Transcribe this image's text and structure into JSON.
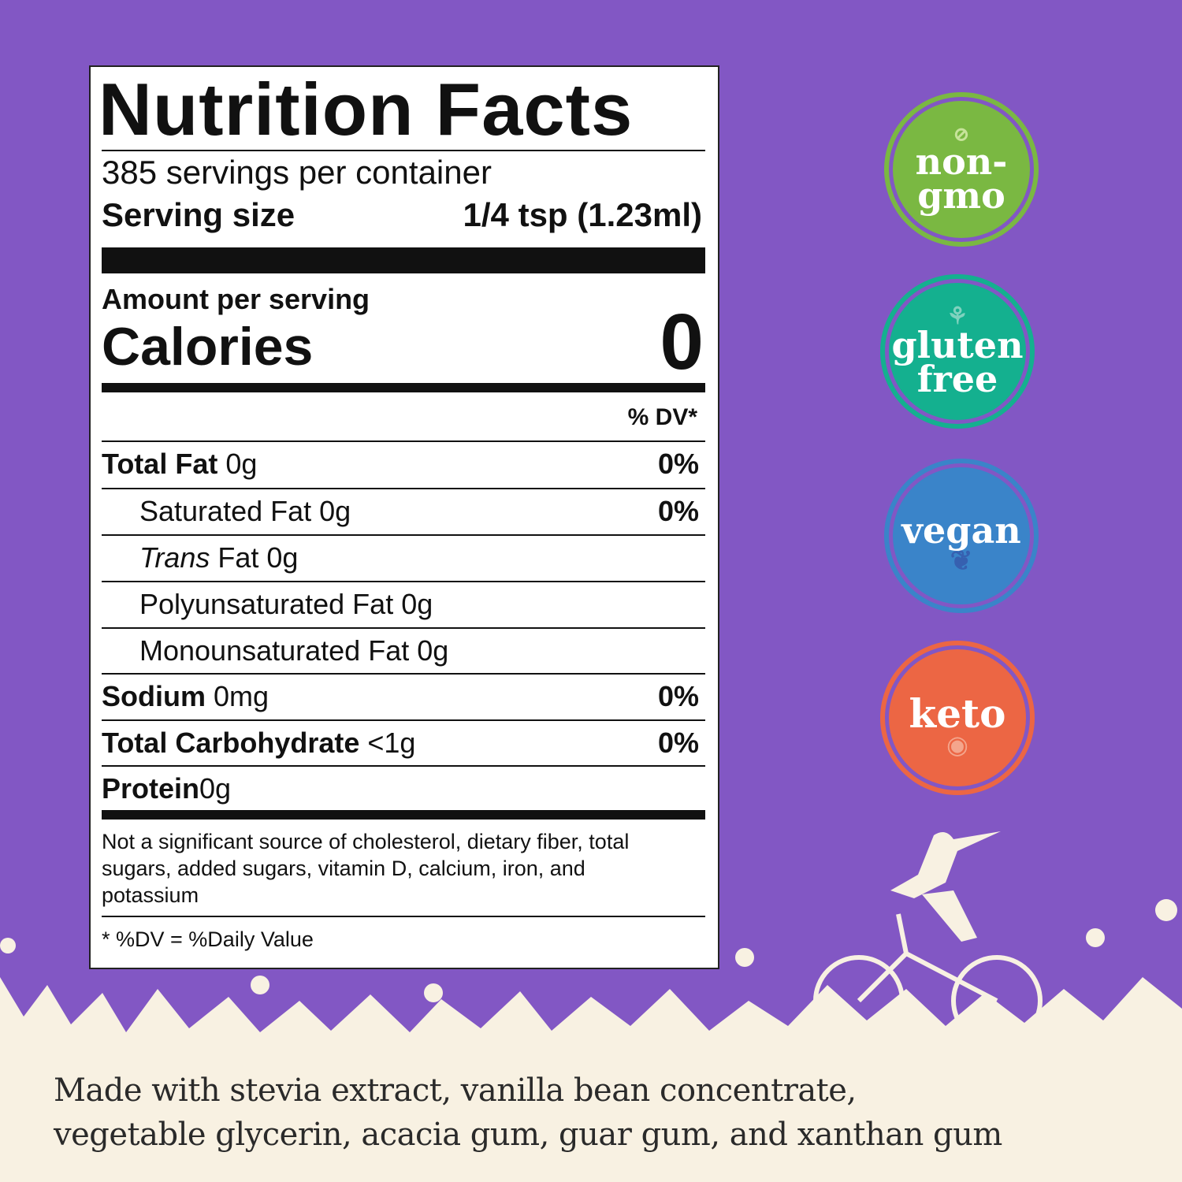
{
  "label": {
    "title": "Nutrition Facts",
    "servings": "385 servings per container",
    "serving_size_label": "Serving size",
    "serving_size_value": "1/4 tsp (1.23ml)",
    "amount_per_serving": "Amount per serving",
    "calories_label": "Calories",
    "calories_value": "0",
    "dv_header": "% DV*",
    "rows": [
      {
        "name": "Total Fat",
        "amount": "0g",
        "dv": "0%"
      },
      {
        "name": "Saturated Fat 0g",
        "dv": "0%"
      },
      {
        "name_italic": "Trans",
        "name": "Fat 0g"
      },
      {
        "name": "Polyunsaturated Fat 0g"
      },
      {
        "name": "Monounsaturated Fat 0g"
      },
      {
        "name": "Sodium",
        "amount": "0mg",
        "dv": "0%"
      },
      {
        "name": "Total Carbohydrate",
        "amount": "<1g",
        "dv": "0%"
      },
      {
        "name": "Protein",
        "amount": "0g"
      }
    ],
    "footnote_1": "Not a significant source of cholesterol, dietary fiber, total sugars, added sugars, vitamin D, calcium, iron, and potassium",
    "footnote_2": "* %DV = %Daily Value"
  },
  "badges": [
    {
      "line1": "non-",
      "line2": "gmo",
      "icon": "no-flask-icon",
      "color": "#7ab842"
    },
    {
      "line1": "gluten",
      "line2": "free",
      "icon": "wheat-icon",
      "color": "#14b08f"
    },
    {
      "line1": "vegan",
      "icon": "leaf-icon",
      "color": "#3a84c9"
    },
    {
      "line1": "keto",
      "icon": "egg-icon",
      "color": "#ec6644"
    }
  ],
  "ingredients": {
    "line1": "Made with stevia extract, vanilla bean concentrate,",
    "line2": "vegetable glycerin, acacia gum, guar gum, and xanthan gum"
  },
  "colors": {
    "background": "#8257c4",
    "cream": "#f8f1e2"
  }
}
